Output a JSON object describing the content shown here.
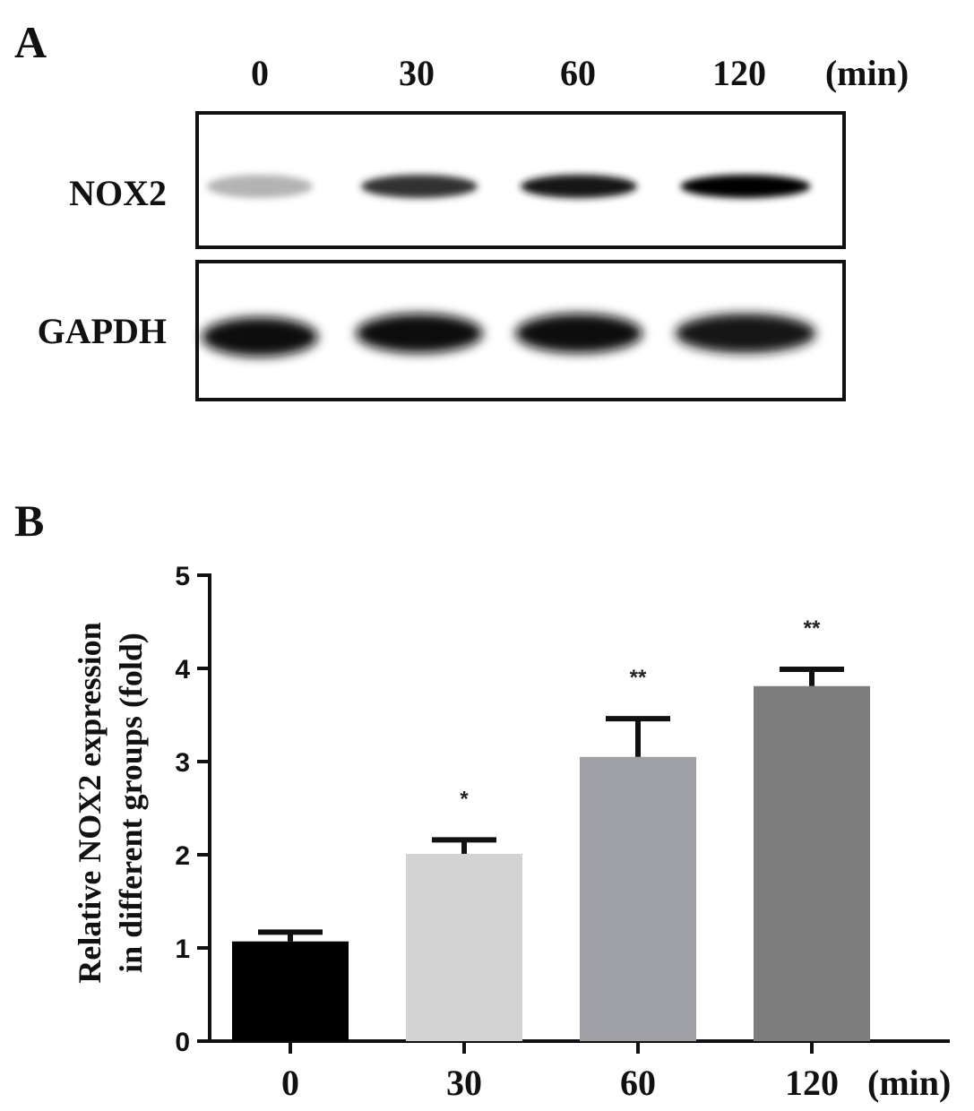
{
  "panel_a": {
    "letter": "A",
    "lanes": [
      "0",
      "30",
      "60",
      "120"
    ],
    "unit": "(min)",
    "rows": [
      {
        "label": "NOX2",
        "band_intensity": [
          0.3,
          0.8,
          0.9,
          1.0
        ]
      },
      {
        "label": "GAPDH",
        "band_intensity": [
          0.95,
          0.95,
          0.95,
          0.92
        ]
      }
    ]
  },
  "panel_b": {
    "letter": "B",
    "x_unit": "(min)"
  },
  "chart_data": {
    "type": "bar",
    "categories": [
      "0",
      "30",
      "60",
      "120"
    ],
    "values": [
      1.07,
      2.01,
      3.05,
      3.81
    ],
    "error": [
      0.1,
      0.15,
      0.41,
      0.18
    ],
    "significance": [
      "",
      "*",
      "**",
      "**"
    ],
    "colors": [
      "#000000",
      "#d3d3d3",
      "#9fa0a5",
      "#7d7d7d"
    ],
    "title": "",
    "xlabel": "",
    "ylabel": [
      "Relative NOX2 expression",
      "in different groups (fold)"
    ],
    "ylim": [
      0,
      5
    ],
    "yticks": [
      0,
      1,
      2,
      3,
      4,
      5
    ],
    "grid": false
  }
}
